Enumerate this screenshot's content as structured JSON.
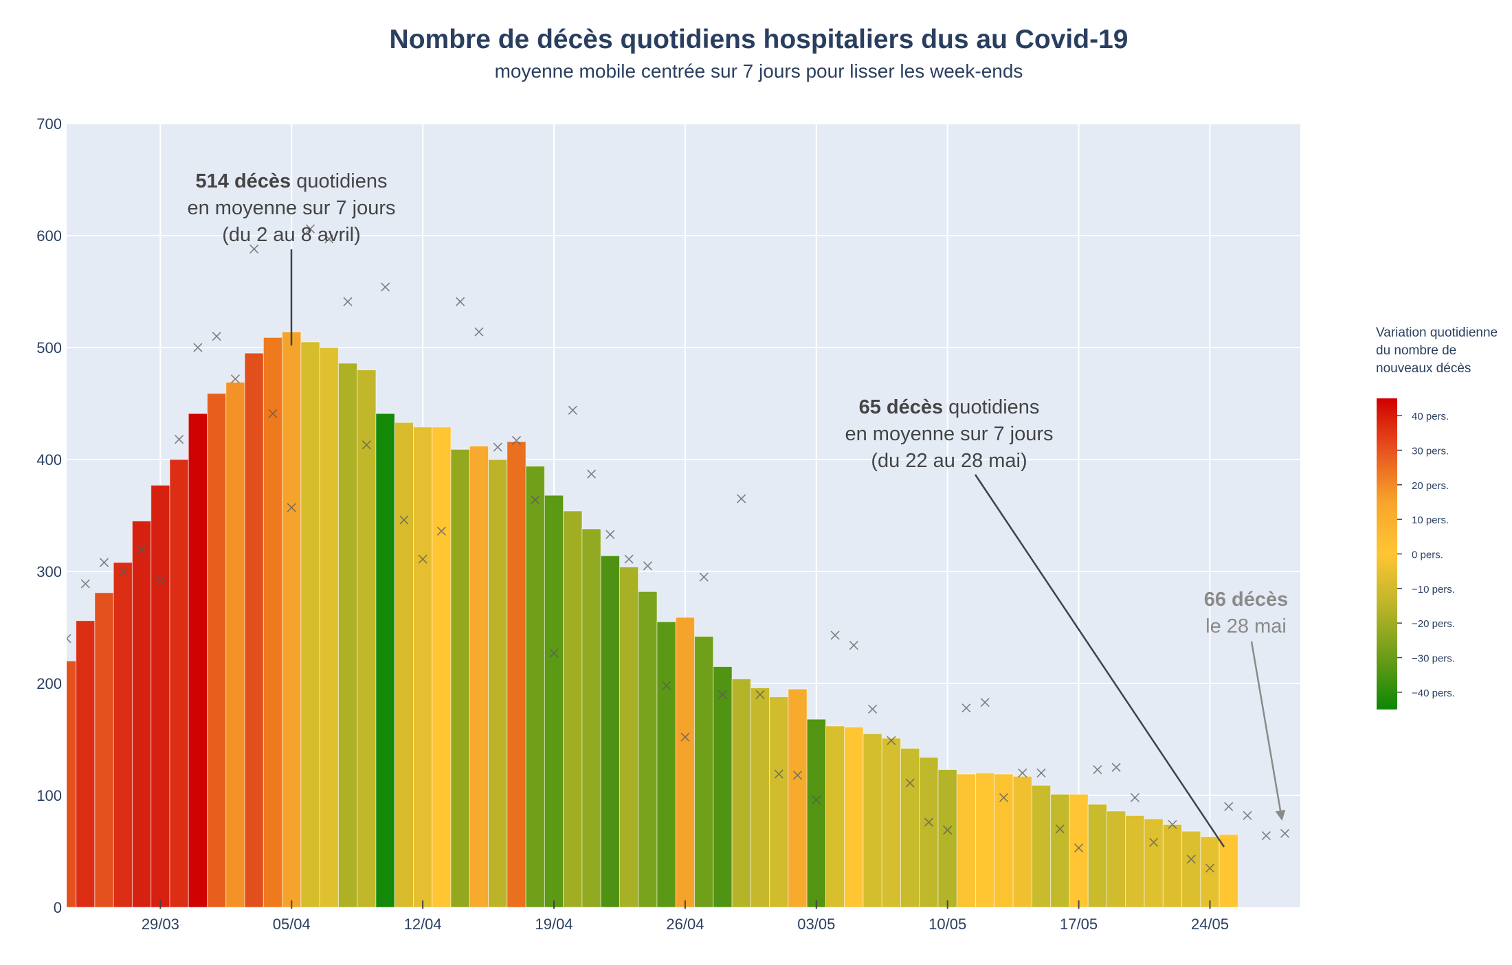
{
  "chart_data": {
    "type": "bar",
    "title": "Nombre de décès quotidiens hospitaliers dus au Covid-19",
    "subtitle": "moyenne mobile centrée sur 7 jours pour lisser les week-ends",
    "xlabel": "",
    "ylabel": "",
    "ylim": [
      0,
      700
    ],
    "y_ticks": [
      0,
      100,
      200,
      300,
      400,
      500,
      600,
      700
    ],
    "x_ticks": [
      "29/03",
      "05/04",
      "12/04",
      "19/04",
      "26/04",
      "03/05",
      "10/05",
      "17/05",
      "24/05"
    ],
    "x_tick_indices": [
      5,
      12,
      19,
      26,
      33,
      40,
      47,
      54,
      61
    ],
    "grid": true,
    "plot_background": "#e5ebf5",
    "series": [
      {
        "kind": "bar",
        "values": [
          220,
          256,
          281,
          308,
          345,
          377,
          400,
          441,
          459,
          469,
          495,
          509,
          514,
          505,
          500,
          486,
          480,
          441,
          433,
          429,
          429,
          409,
          412,
          400,
          416,
          394,
          368,
          354,
          338,
          314,
          304,
          282,
          255,
          259,
          242,
          215,
          204,
          196,
          188,
          195,
          168,
          162,
          161,
          155,
          151,
          142,
          134,
          123,
          119,
          120,
          119,
          117,
          109,
          101,
          101,
          92,
          86,
          82,
          79,
          74,
          68,
          63,
          65
        ],
        "colors": [
          "#e3511f",
          "#dc2e14",
          "#e3511f",
          "#dc2e14",
          "#d72110",
          "#d72110",
          "#dc2e14",
          "#d00303",
          "#e85f1d",
          "#f39227",
          "#e1501c",
          "#ef7a1e",
          "#f6a32b",
          "#d5bd2c",
          "#dfc02f",
          "#aeb126",
          "#c2b72a",
          "#148807",
          "#d9bb2e",
          "#e5bf2f",
          "#ffc533",
          "#93a81f",
          "#f7aa2d",
          "#bdb32a",
          "#ea6f1e",
          "#70a019",
          "#5c9915",
          "#a1ae24",
          "#91aa21",
          "#4f9213",
          "#a8b126",
          "#79a31c",
          "#5b9815",
          "#f6a32b",
          "#70a019",
          "#519414",
          "#b5b428",
          "#c5b92b",
          "#d0bc2c",
          "#f7ab2d",
          "#539413",
          "#d8bf2e",
          "#ffc533",
          "#d3be2d",
          "#d5bf2e",
          "#c8bb2c",
          "#c0b82b",
          "#b3b428",
          "#fbc231",
          "#ffc533",
          "#fcc331",
          "#f1c031",
          "#cabb2d",
          "#c2b92b",
          "#ffc533",
          "#c9bb2c",
          "#d0bc2d",
          "#dcbf2e",
          "#dfc02f",
          "#ddbf2e",
          "#dcbf2f",
          "#e6c12f",
          "#ffc533"
        ]
      },
      {
        "kind": "scatter-x",
        "values": [
          240,
          289,
          308,
          300,
          320,
          292,
          418,
          500,
          510,
          472,
          588,
          441,
          357,
          606,
          597,
          541,
          413,
          554,
          346,
          311,
          336,
          541,
          514,
          411,
          417,
          364,
          227,
          444,
          387,
          333,
          311,
          305,
          198,
          152,
          295,
          190,
          365,
          190,
          119,
          118,
          96,
          243,
          234,
          177,
          149,
          111,
          76,
          69,
          178,
          183,
          98,
          120,
          120,
          70,
          53,
          123,
          125,
          98,
          58,
          74,
          43,
          35,
          90,
          82,
          64,
          66
        ]
      }
    ],
    "annotations": [
      {
        "id": "peak",
        "bold": "514 décès",
        "text": " quotidiens",
        "line2": "en moyenne sur 7 jours",
        "line3": "(du 2 au 8 avril)"
      },
      {
        "id": "recent",
        "bold": "65 décès",
        "text": " quotidiens",
        "line2": "en moyenne sur 7 jours",
        "line3": "(du 22 au 28 mai)"
      },
      {
        "id": "last",
        "bold": "66 décès",
        "line2": "le 28 mai"
      }
    ],
    "legend": {
      "position": "right",
      "title_lines": [
        "Variation quotidienne",
        "du nombre de",
        "nouveaux décès"
      ],
      "range": [
        -45,
        45
      ],
      "ticks": [
        {
          "value": 40,
          "label": "40 pers."
        },
        {
          "value": 30,
          "label": "30 pers."
        },
        {
          "value": 20,
          "label": "20 pers."
        },
        {
          "value": 10,
          "label": "10 pers."
        },
        {
          "value": 0,
          "label": "0 pers."
        },
        {
          "value": -10,
          "label": "−10 pers."
        },
        {
          "value": -20,
          "label": "−20 pers."
        },
        {
          "value": -30,
          "label": "−30 pers."
        },
        {
          "value": -40,
          "label": "−40 pers."
        }
      ],
      "gradient": [
        "#d00000",
        "#e8531e",
        "#f7a52b",
        "#ffc533",
        "#bcb42a",
        "#6a9c18",
        "#0b8705"
      ]
    }
  }
}
